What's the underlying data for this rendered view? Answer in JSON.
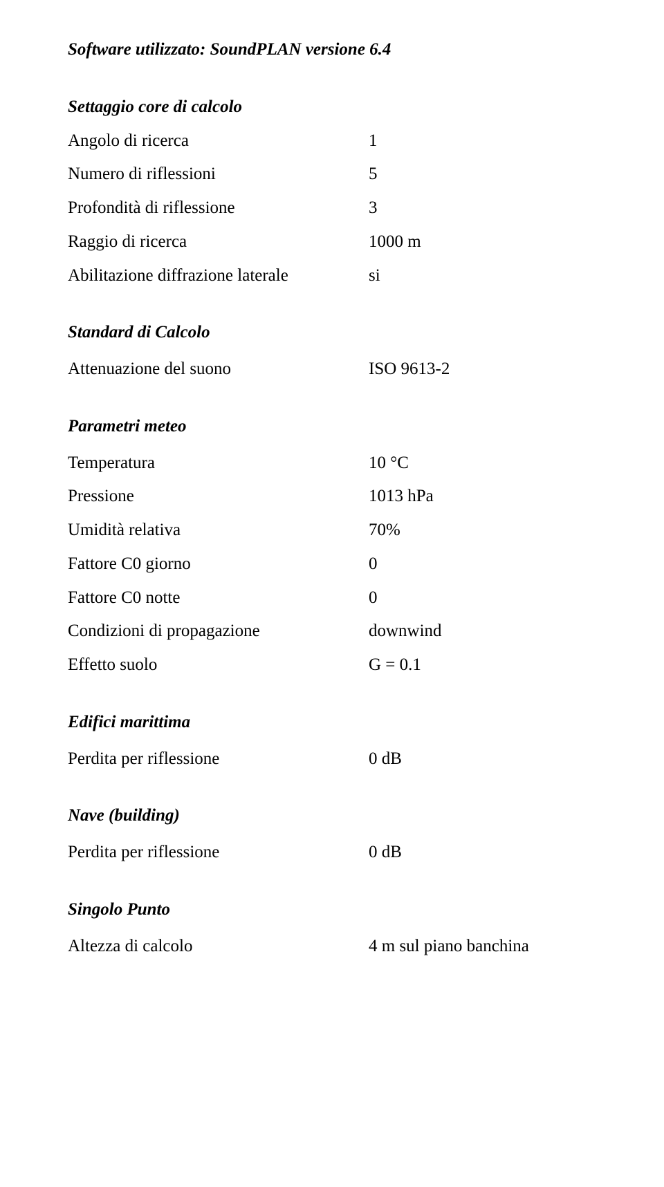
{
  "title_software": "Software utilizzato: SoundPLAN versione 6.4",
  "settaggio": {
    "title": "Settaggio core di calcolo",
    "rows": [
      {
        "label": "Angolo di ricerca",
        "value": "1"
      },
      {
        "label": "Numero di riflessioni",
        "value": "5"
      },
      {
        "label": "Profondità di riflessione",
        "value": "3"
      },
      {
        "label": "Raggio di ricerca",
        "value": "1000 m"
      },
      {
        "label": "Abilitazione diffrazione laterale",
        "value": "si"
      }
    ]
  },
  "standard": {
    "title": "Standard di Calcolo",
    "rows": [
      {
        "label": "Attenuazione del suono",
        "value": "ISO 9613-2"
      }
    ]
  },
  "parametri": {
    "title": "Parametri meteo",
    "rows": [
      {
        "label": "Temperatura",
        "value": "10 °C"
      },
      {
        "label": "Pressione",
        "value": "1013 hPa"
      },
      {
        "label": "Umidità relativa",
        "value": "70%"
      },
      {
        "label": "Fattore C0 giorno",
        "value": "0"
      },
      {
        "label": "Fattore C0 notte",
        "value": "0"
      },
      {
        "label": "Condizioni di propagazione",
        "value": "downwind"
      },
      {
        "label": "Effetto suolo",
        "value": "G = 0.1"
      }
    ]
  },
  "edifici": {
    "title": "Edifici marittima",
    "rows": [
      {
        "label": "Perdita per riflessione",
        "value": "0 dB"
      }
    ]
  },
  "nave": {
    "title": "Nave (building)",
    "rows": [
      {
        "label": "Perdita per riflessione",
        "value": "0 dB"
      }
    ]
  },
  "singolo": {
    "title": "Singolo Punto",
    "rows": [
      {
        "label": "Altezza di calcolo",
        "value": "4 m sul piano banchina"
      }
    ]
  }
}
